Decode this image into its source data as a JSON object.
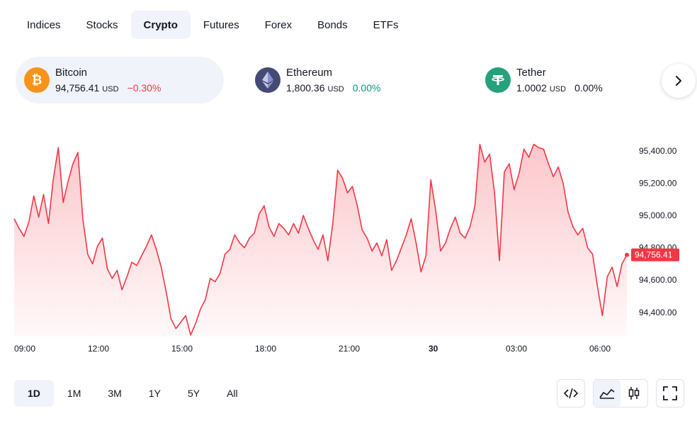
{
  "tabs": [
    {
      "label": "Indices"
    },
    {
      "label": "Stocks"
    },
    {
      "label": "Crypto"
    },
    {
      "label": "Futures"
    },
    {
      "label": "Forex"
    },
    {
      "label": "Bonds"
    },
    {
      "label": "ETFs"
    }
  ],
  "active_tab": "Crypto",
  "tickers": [
    {
      "name": "Bitcoin",
      "price": "94,756.41",
      "currency": "USD",
      "change": "−0.30%",
      "icon": "bitcoin-icon",
      "color": "#f7931a",
      "glyph": "₿"
    },
    {
      "name": "Ethereum",
      "price": "1,800.36",
      "currency": "USD",
      "change": "0.00%",
      "icon": "ethereum-icon",
      "color": "#454a75",
      "glyph": "◆"
    },
    {
      "name": "Tether",
      "price": "1.0002",
      "currency": "USD",
      "change": "0.00%",
      "icon": "tether-icon",
      "color": "#26a17b",
      "glyph": "₮"
    }
  ],
  "chart_data": {
    "type": "area",
    "series": [
      {
        "values": [
          94980,
          94920,
          94870,
          94960,
          95120,
          94990,
          95130,
          94950,
          95230,
          95420,
          95080,
          95210,
          95320,
          95390,
          94980,
          94760,
          94700,
          94810,
          94860,
          94670,
          94610,
          94660,
          94540,
          94620,
          94710,
          94690,
          94750,
          94810,
          94880,
          94790,
          94680,
          94530,
          94360,
          94300,
          94340,
          94380,
          94260,
          94330,
          94420,
          94480,
          94610,
          94590,
          94640,
          94760,
          94790,
          94880,
          94830,
          94800,
          94860,
          94890,
          95010,
          95060,
          94930,
          94870,
          94950,
          94920,
          94880,
          94950,
          94890,
          95000,
          94920,
          94850,
          94790,
          94880,
          94720,
          94950,
          95280,
          95230,
          95140,
          95180,
          95060,
          94910,
          94860,
          94780,
          94830,
          94750,
          94850,
          94660,
          94720,
          94800,
          94880,
          94980,
          94830,
          94650,
          94750,
          95220,
          95030,
          94780,
          94830,
          94920,
          94990,
          94890,
          94860,
          94930,
          95060,
          95440,
          95330,
          95380,
          95140,
          94720,
          95270,
          95320,
          95160,
          95260,
          95410,
          95360,
          95440,
          95420,
          95410,
          95320,
          95240,
          95300,
          95200,
          95020,
          94930,
          94880,
          94920,
          94800,
          94760,
          94560,
          94380,
          94620,
          94680,
          94560,
          94700,
          94756
        ]
      }
    ],
    "x_ticks": [
      "09:00",
      "12:00",
      "15:00",
      "18:00",
      "21:00",
      "30",
      "03:00",
      "06:00"
    ],
    "y_ticks": [
      "95,400.00",
      "95,200.00",
      "95,000.00",
      "94,800.00",
      "94,600.00",
      "94,400.00"
    ],
    "ylim": [
      94250,
      95500
    ],
    "y_tick_values": [
      95400,
      95200,
      95000,
      94800,
      94600,
      94400
    ],
    "last_value_label": "94,756.41",
    "line_color": "#f23645",
    "grid": false
  },
  "ranges": [
    {
      "label": "1D"
    },
    {
      "label": "1M"
    },
    {
      "label": "3M"
    },
    {
      "label": "1Y"
    },
    {
      "label": "5Y"
    },
    {
      "label": "All"
    }
  ],
  "active_range": "1D",
  "tools": {
    "embed": "code-icon",
    "area": "area-chart-icon",
    "candles": "candlestick-icon",
    "fullscreen": "fullscreen-icon"
  }
}
